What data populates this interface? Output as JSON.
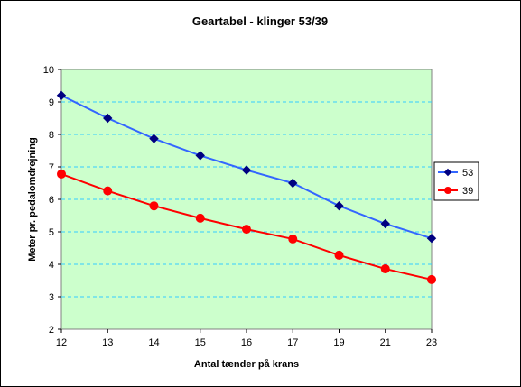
{
  "chart_data": {
    "type": "line",
    "title": "Geartabel - klinger 53/39",
    "xlabel": "Antal tænder på krans",
    "ylabel": "Meter pr. pedalomdrejning",
    "categories": [
      "12",
      "13",
      "14",
      "15",
      "16",
      "17",
      "19",
      "21",
      "23"
    ],
    "yticks": [
      "2",
      "3",
      "4",
      "5",
      "6",
      "7",
      "8",
      "9",
      "10"
    ],
    "ylim": [
      2,
      10
    ],
    "grid": true,
    "legend": "right",
    "plot_background": "#ccffcc",
    "series": [
      {
        "name": "53",
        "color": "#3366ff",
        "marker": "diamond",
        "marker_color": "#000080",
        "values": [
          9.2,
          8.5,
          7.87,
          7.35,
          6.9,
          6.5,
          5.8,
          5.25,
          4.8
        ]
      },
      {
        "name": "39",
        "color": "#ff0000",
        "marker": "circle",
        "marker_color": "#ff0000",
        "values": [
          6.78,
          6.26,
          5.8,
          5.42,
          5.08,
          4.78,
          4.28,
          3.86,
          3.53
        ]
      }
    ]
  }
}
